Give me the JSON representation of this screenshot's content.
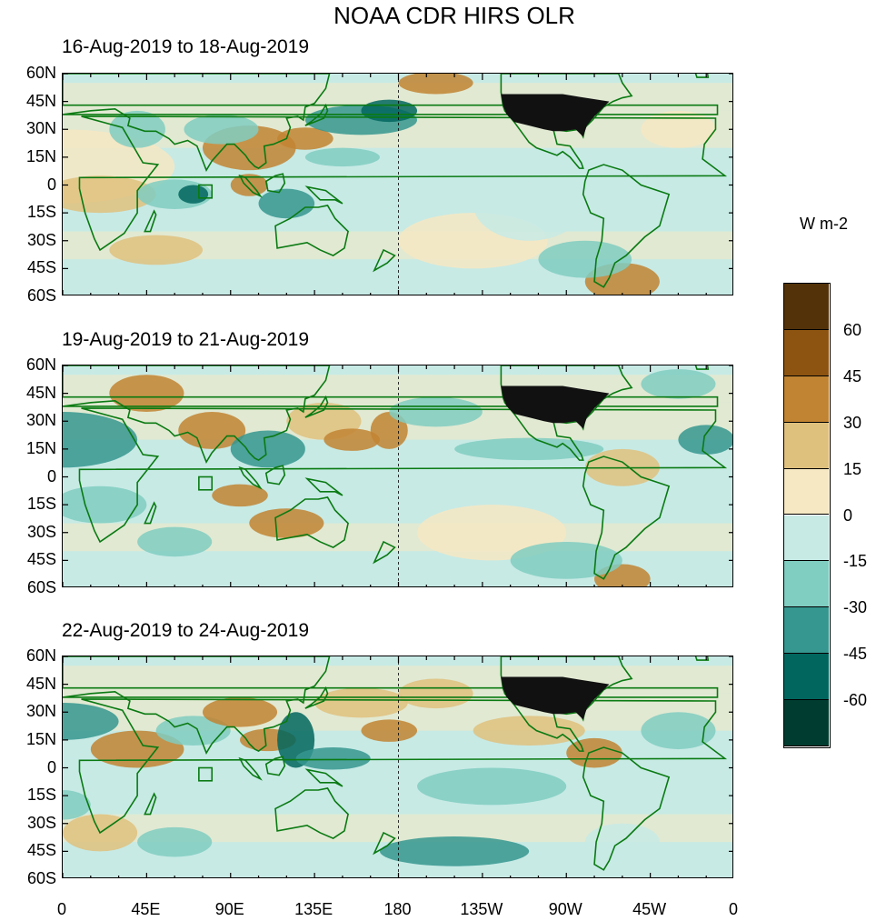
{
  "title": "NOAA CDR HIRS OLR",
  "panels": [
    {
      "label": "16-Aug-2019 to 18-Aug-2019"
    },
    {
      "label": "19-Aug-2019 to 21-Aug-2019"
    },
    {
      "label": "22-Aug-2019 to 24-Aug-2019"
    }
  ],
  "lat_ticks": [
    "60N",
    "45N",
    "30N",
    "15N",
    "0",
    "15S",
    "30S",
    "45S",
    "60S"
  ],
  "lon_ticks": [
    "0",
    "45E",
    "90E",
    "135E",
    "180",
    "135W",
    "90W",
    "45W",
    "0"
  ],
  "colorbar": {
    "unit": "W m-2",
    "labels": [
      "60",
      "45",
      "30",
      "15",
      "0",
      "-15",
      "-30",
      "-45",
      "-60"
    ],
    "colors": [
      "#533209",
      "#8d5411",
      "#c18432",
      "#dfc17e",
      "#f6e8c3",
      "#c7eae5",
      "#80cdc1",
      "#35978f",
      "#01665e",
      "#003c30"
    ]
  }
}
